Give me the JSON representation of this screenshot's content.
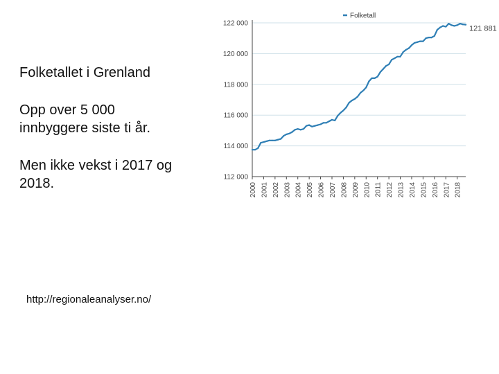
{
  "slide": {
    "title": "Folketallet i Grenland",
    "paragraph_1": "Opp over 5 000 innbyggere siste ti år.",
    "paragraph_2": "Men ikke vekst i 2017 og 2018.",
    "source_link": "http://regionaleanalyser.no/"
  },
  "chart_data": {
    "type": "line",
    "title": "",
    "xlabel": "",
    "ylabel": "",
    "series": [
      {
        "name": "Folketall",
        "color": "#2f7fb5",
        "end_label": "121 881",
        "x": [
          2000.0,
          2000.25,
          2000.5,
          2000.75,
          2001.0,
          2001.25,
          2001.5,
          2001.75,
          2002.0,
          2002.25,
          2002.5,
          2002.75,
          2003.0,
          2003.25,
          2003.5,
          2003.75,
          2004.0,
          2004.25,
          2004.5,
          2004.75,
          2005.0,
          2005.25,
          2005.5,
          2005.75,
          2006.0,
          2006.25,
          2006.5,
          2006.75,
          2007.0,
          2007.25,
          2007.5,
          2007.75,
          2008.0,
          2008.25,
          2008.5,
          2008.75,
          2009.0,
          2009.25,
          2009.5,
          2009.75,
          2010.0,
          2010.25,
          2010.5,
          2010.75,
          2011.0,
          2011.25,
          2011.5,
          2011.75,
          2012.0,
          2012.25,
          2012.5,
          2012.75,
          2013.0,
          2013.25,
          2013.5,
          2013.75,
          2014.0,
          2014.25,
          2014.5,
          2014.75,
          2015.0,
          2015.25,
          2015.5,
          2015.75,
          2016.0,
          2016.25,
          2016.5,
          2016.75,
          2017.0,
          2017.25,
          2017.5,
          2017.75,
          2018.0,
          2018.25,
          2018.5,
          2018.75
        ],
        "values": [
          113750,
          113750,
          113850,
          114200,
          114250,
          114300,
          114350,
          114350,
          114350,
          114400,
          114450,
          114650,
          114750,
          114800,
          114900,
          115050,
          115100,
          115050,
          115100,
          115300,
          115350,
          115250,
          115300,
          115350,
          115400,
          115500,
          115500,
          115600,
          115700,
          115650,
          115950,
          116150,
          116300,
          116500,
          116800,
          116950,
          117050,
          117200,
          117450,
          117600,
          117800,
          118200,
          118400,
          118400,
          118500,
          118800,
          119000,
          119200,
          119300,
          119600,
          119700,
          119800,
          119800,
          120100,
          120250,
          120350,
          120550,
          120700,
          120750,
          120800,
          120800,
          121000,
          121050,
          121050,
          121150,
          121550,
          121700,
          121800,
          121750,
          121950,
          121850,
          121800,
          121850,
          121950,
          121900,
          121881
        ]
      }
    ],
    "ylim": [
      112000,
      122000
    ],
    "xlim": [
      2000,
      2018.75
    ],
    "y_ticks": [
      112000,
      114000,
      116000,
      118000,
      120000,
      122000
    ],
    "y_tick_labels": [
      "112 000",
      "114 000",
      "116 000",
      "118 000",
      "120 000",
      "122 000"
    ],
    "x_ticks": [
      2000,
      2001,
      2002,
      2003,
      2004,
      2005,
      2006,
      2007,
      2008,
      2009,
      2010,
      2011,
      2012,
      2013,
      2014,
      2015,
      2016,
      2017,
      2018
    ],
    "x_tick_labels": [
      "2000",
      "2001",
      "2002",
      "2003",
      "2004",
      "2005",
      "2006",
      "2007",
      "2008",
      "2009",
      "2010",
      "2011",
      "2012",
      "2013",
      "2014",
      "2015",
      "2016",
      "2017",
      "2018"
    ],
    "grid": true,
    "legend": "top-right",
    "colors": {
      "line": "#2f7fb5",
      "grid": "#cfe0e8",
      "axis": "#444444",
      "text": "#444444"
    }
  }
}
